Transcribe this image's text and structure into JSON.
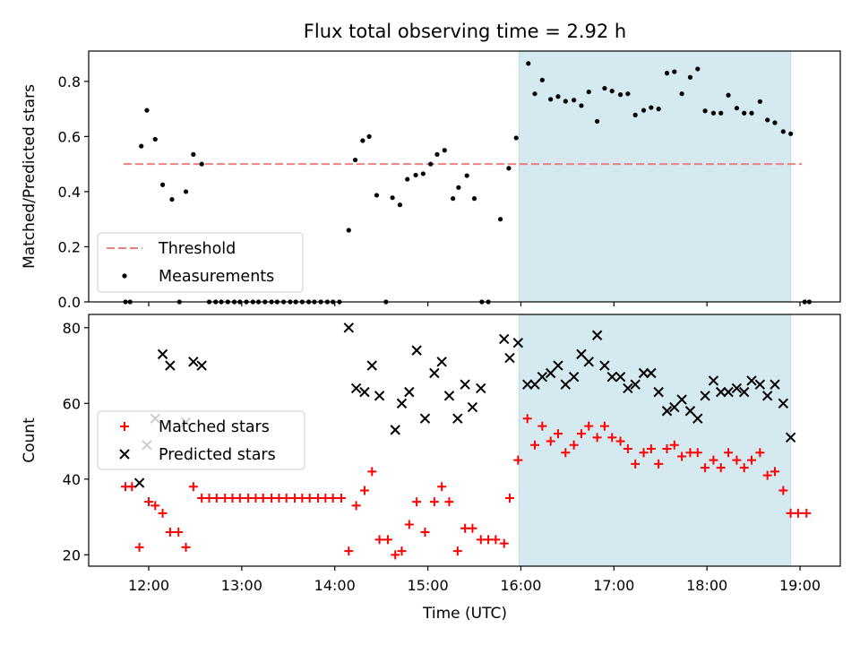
{
  "figure": {
    "title": "Flux total observing time = 2.92 h",
    "xlabel": "Time (UTC)",
    "xticks": [
      "12:00",
      "13:00",
      "14:00",
      "15:00",
      "16:00",
      "17:00",
      "18:00",
      "19:00"
    ],
    "observing_window": {
      "start_hour": 15.98,
      "end_hour": 18.9,
      "color": "#d4eaf0"
    }
  },
  "chart_data": [
    {
      "type": "scatter",
      "ylabel": "Matched/Predicted stars",
      "ylim": [
        0,
        0.91
      ],
      "yticks": [
        "0.0",
        "0.2",
        "0.4",
        "0.6",
        "0.8"
      ],
      "threshold": {
        "value": 0.5,
        "x_range": [
          11.73,
          19.02
        ],
        "color": "#f08080",
        "style": "dashed"
      },
      "legend": {
        "position": "lower-left",
        "entries": [
          "Threshold",
          "Measurements"
        ]
      },
      "series": [
        {
          "name": "Measurements",
          "color": "#000000",
          "marker": "dot",
          "points": [
            [
              11.75,
              0.0
            ],
            [
              11.8,
              0.0
            ],
            [
              11.92,
              0.565
            ],
            [
              11.98,
              0.695
            ],
            [
              12.07,
              0.59
            ],
            [
              12.15,
              0.425
            ],
            [
              12.25,
              0.372
            ],
            [
              12.33,
              0.0
            ],
            [
              12.4,
              0.4
            ],
            [
              12.48,
              0.535
            ],
            [
              12.57,
              0.5
            ],
            [
              12.65,
              0.0
            ],
            [
              12.72,
              0.0
            ],
            [
              12.78,
              0.0
            ],
            [
              12.85,
              0.0
            ],
            [
              12.92,
              0.0
            ],
            [
              12.98,
              0.0
            ],
            [
              13.05,
              0.0
            ],
            [
              13.12,
              0.0
            ],
            [
              13.18,
              0.0
            ],
            [
              13.25,
              0.0
            ],
            [
              13.32,
              0.0
            ],
            [
              13.38,
              0.0
            ],
            [
              13.45,
              0.0
            ],
            [
              13.52,
              0.0
            ],
            [
              13.58,
              0.0
            ],
            [
              13.65,
              0.0
            ],
            [
              13.72,
              0.0
            ],
            [
              13.78,
              0.0
            ],
            [
              13.85,
              0.0
            ],
            [
              13.92,
              0.0
            ],
            [
              13.98,
              0.0
            ],
            [
              14.05,
              0.0
            ],
            [
              14.15,
              0.26
            ],
            [
              14.22,
              0.515
            ],
            [
              14.3,
              0.585
            ],
            [
              14.37,
              0.6
            ],
            [
              14.45,
              0.387
            ],
            [
              14.55,
              0.0
            ],
            [
              14.62,
              0.378
            ],
            [
              14.7,
              0.352
            ],
            [
              14.78,
              0.445
            ],
            [
              14.87,
              0.46
            ],
            [
              14.95,
              0.465
            ],
            [
              15.03,
              0.5
            ],
            [
              15.1,
              0.535
            ],
            [
              15.18,
              0.55
            ],
            [
              15.27,
              0.375
            ],
            [
              15.33,
              0.415
            ],
            [
              15.42,
              0.458
            ],
            [
              15.5,
              0.375
            ],
            [
              15.58,
              0.0
            ],
            [
              15.65,
              0.0
            ],
            [
              15.78,
              0.3
            ],
            [
              15.87,
              0.485
            ],
            [
              15.95,
              0.595
            ],
            [
              16.08,
              0.865
            ],
            [
              16.15,
              0.755
            ],
            [
              16.23,
              0.805
            ],
            [
              16.32,
              0.735
            ],
            [
              16.4,
              0.745
            ],
            [
              16.48,
              0.728
            ],
            [
              16.57,
              0.732
            ],
            [
              16.65,
              0.712
            ],
            [
              16.73,
              0.762
            ],
            [
              16.82,
              0.655
            ],
            [
              16.9,
              0.775
            ],
            [
              16.98,
              0.765
            ],
            [
              17.07,
              0.752
            ],
            [
              17.15,
              0.755
            ],
            [
              17.23,
              0.678
            ],
            [
              17.32,
              0.695
            ],
            [
              17.4,
              0.705
            ],
            [
              17.48,
              0.7
            ],
            [
              17.57,
              0.83
            ],
            [
              17.65,
              0.835
            ],
            [
              17.73,
              0.755
            ],
            [
              17.82,
              0.815
            ],
            [
              17.9,
              0.845
            ],
            [
              17.98,
              0.693
            ],
            [
              18.07,
              0.685
            ],
            [
              18.15,
              0.685
            ],
            [
              18.23,
              0.75
            ],
            [
              18.32,
              0.703
            ],
            [
              18.4,
              0.685
            ],
            [
              18.48,
              0.685
            ],
            [
              18.57,
              0.727
            ],
            [
              18.65,
              0.66
            ],
            [
              18.73,
              0.65
            ],
            [
              18.82,
              0.618
            ],
            [
              18.9,
              0.61
            ],
            [
              19.05,
              0.0
            ],
            [
              19.1,
              0.0
            ]
          ]
        }
      ]
    },
    {
      "type": "scatter",
      "ylabel": "Count",
      "ylim": [
        17,
        83.5
      ],
      "yticks": [
        "20",
        "40",
        "60",
        "80"
      ],
      "legend": {
        "position": "center-left",
        "entries": [
          "Matched stars",
          "Predicted stars"
        ]
      },
      "series": [
        {
          "name": "Matched stars",
          "color": "#ff0000",
          "marker": "plus",
          "points": [
            [
              11.75,
              38
            ],
            [
              11.82,
              38
            ],
            [
              11.9,
              22
            ],
            [
              12.0,
              34
            ],
            [
              12.07,
              33
            ],
            [
              12.15,
              31
            ],
            [
              12.23,
              26
            ],
            [
              12.32,
              26
            ],
            [
              12.4,
              22
            ],
            [
              12.48,
              38
            ],
            [
              12.57,
              35
            ],
            [
              12.65,
              35
            ],
            [
              12.73,
              35
            ],
            [
              12.82,
              35
            ],
            [
              12.9,
              35
            ],
            [
              12.98,
              35
            ],
            [
              13.07,
              35
            ],
            [
              13.15,
              35
            ],
            [
              13.23,
              35
            ],
            [
              13.32,
              35
            ],
            [
              13.4,
              35
            ],
            [
              13.48,
              35
            ],
            [
              13.57,
              35
            ],
            [
              13.65,
              35
            ],
            [
              13.73,
              35
            ],
            [
              13.82,
              35
            ],
            [
              13.9,
              35
            ],
            [
              13.98,
              35
            ],
            [
              14.07,
              35
            ],
            [
              14.15,
              21
            ],
            [
              14.23,
              33
            ],
            [
              14.32,
              37
            ],
            [
              14.4,
              42
            ],
            [
              14.48,
              24
            ],
            [
              14.57,
              24
            ],
            [
              14.65,
              20
            ],
            [
              14.72,
              21
            ],
            [
              14.8,
              28
            ],
            [
              14.88,
              34
            ],
            [
              14.97,
              26
            ],
            [
              15.07,
              34
            ],
            [
              15.15,
              38
            ],
            [
              15.23,
              34
            ],
            [
              15.32,
              21
            ],
            [
              15.4,
              27
            ],
            [
              15.48,
              27
            ],
            [
              15.57,
              24
            ],
            [
              15.65,
              24
            ],
            [
              15.73,
              24
            ],
            [
              15.82,
              23
            ],
            [
              15.88,
              35
            ],
            [
              15.97,
              45
            ],
            [
              16.07,
              56
            ],
            [
              16.15,
              49
            ],
            [
              16.23,
              54
            ],
            [
              16.32,
              50
            ],
            [
              16.4,
              52
            ],
            [
              16.48,
              47
            ],
            [
              16.57,
              49
            ],
            [
              16.65,
              52
            ],
            [
              16.73,
              54
            ],
            [
              16.82,
              51
            ],
            [
              16.9,
              54
            ],
            [
              16.98,
              51
            ],
            [
              17.07,
              50
            ],
            [
              17.15,
              48
            ],
            [
              17.23,
              44
            ],
            [
              17.32,
              47
            ],
            [
              17.4,
              48
            ],
            [
              17.48,
              44
            ],
            [
              17.57,
              48
            ],
            [
              17.65,
              49
            ],
            [
              17.73,
              46
            ],
            [
              17.82,
              47
            ],
            [
              17.9,
              47
            ],
            [
              17.98,
              43
            ],
            [
              18.07,
              45
            ],
            [
              18.15,
              43
            ],
            [
              18.23,
              47
            ],
            [
              18.32,
              45
            ],
            [
              18.4,
              43
            ],
            [
              18.48,
              45
            ],
            [
              18.57,
              47
            ],
            [
              18.65,
              41
            ],
            [
              18.73,
              42
            ],
            [
              18.82,
              37
            ],
            [
              18.9,
              31
            ],
            [
              18.98,
              31
            ],
            [
              19.07,
              31
            ]
          ]
        },
        {
          "name": "Predicted stars",
          "color": "#000000",
          "marker": "x",
          "points": [
            [
              11.9,
              39
            ],
            [
              11.98,
              49
            ],
            [
              12.07,
              56
            ],
            [
              12.15,
              73
            ],
            [
              12.23,
              70
            ],
            [
              12.4,
              55
            ],
            [
              12.48,
              71
            ],
            [
              12.57,
              70
            ],
            [
              14.15,
              80
            ],
            [
              14.23,
              64
            ],
            [
              14.32,
              63
            ],
            [
              14.4,
              70
            ],
            [
              14.48,
              62
            ],
            [
              14.65,
              53
            ],
            [
              14.72,
              60
            ],
            [
              14.8,
              63
            ],
            [
              14.88,
              74
            ],
            [
              14.97,
              56
            ],
            [
              15.07,
              68
            ],
            [
              15.15,
              71
            ],
            [
              15.23,
              62
            ],
            [
              15.32,
              56
            ],
            [
              15.4,
              65
            ],
            [
              15.48,
              59
            ],
            [
              15.57,
              64
            ],
            [
              15.82,
              77
            ],
            [
              15.88,
              72
            ],
            [
              15.97,
              76
            ],
            [
              16.07,
              65
            ],
            [
              16.15,
              65
            ],
            [
              16.23,
              67
            ],
            [
              16.32,
              68
            ],
            [
              16.4,
              70
            ],
            [
              16.48,
              65
            ],
            [
              16.57,
              67
            ],
            [
              16.65,
              73
            ],
            [
              16.73,
              71
            ],
            [
              16.82,
              78
            ],
            [
              16.9,
              70
            ],
            [
              16.98,
              67
            ],
            [
              17.07,
              67
            ],
            [
              17.15,
              64
            ],
            [
              17.23,
              65
            ],
            [
              17.32,
              68
            ],
            [
              17.4,
              68
            ],
            [
              17.48,
              63
            ],
            [
              17.57,
              58
            ],
            [
              17.65,
              59
            ],
            [
              17.73,
              61
            ],
            [
              17.82,
              58
            ],
            [
              17.9,
              56
            ],
            [
              17.98,
              62
            ],
            [
              18.07,
              66
            ],
            [
              18.15,
              63
            ],
            [
              18.23,
              63
            ],
            [
              18.32,
              64
            ],
            [
              18.4,
              63
            ],
            [
              18.48,
              66
            ],
            [
              18.57,
              65
            ],
            [
              18.65,
              62
            ],
            [
              18.73,
              65
            ],
            [
              18.82,
              60
            ],
            [
              18.9,
              51
            ]
          ]
        }
      ]
    }
  ]
}
